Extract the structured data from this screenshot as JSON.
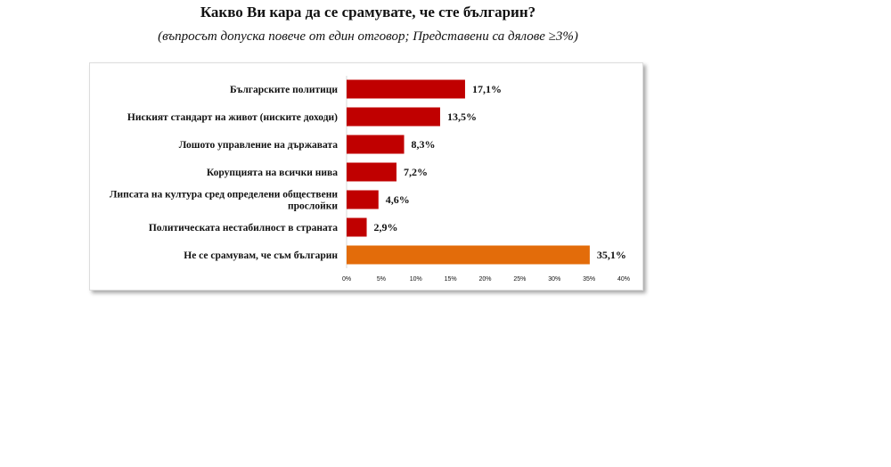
{
  "chart_data": {
    "type": "bar",
    "orientation": "horizontal",
    "title": "Какво Ви кара да се срамувате, че сте българин?",
    "subtitle": "(въпросът допуска повече от един отговор; Представени са дялове ≥3%)",
    "categories": [
      [
        "Българските политици"
      ],
      [
        "Ниският стандарт на живот (ниските доходи)"
      ],
      [
        "Лошото управление на държавата"
      ],
      [
        "Корупцията на всички нива"
      ],
      [
        "Липсата на култура сред определени обществени",
        "прослойки"
      ],
      [
        "Политическата нестабилност в страната"
      ],
      [
        "Не се срамувам, че съм българин"
      ]
    ],
    "values": [
      17.1,
      13.5,
      8.3,
      7.2,
      4.6,
      2.9,
      35.1
    ],
    "value_labels": [
      "17,1%",
      "13,5%",
      "8,3%",
      "7,2%",
      "4,6%",
      "2,9%",
      "35,1%"
    ],
    "colors": [
      "#c00000",
      "#c00000",
      "#c00000",
      "#c00000",
      "#c00000",
      "#c00000",
      "#e36c0a"
    ],
    "xlim": [
      0,
      40
    ],
    "xticks": [
      "0%",
      "5%",
      "10%",
      "15%",
      "20%",
      "25%",
      "30%",
      "35%",
      "40%"
    ],
    "grid": false,
    "xlabel": "",
    "ylabel": ""
  }
}
